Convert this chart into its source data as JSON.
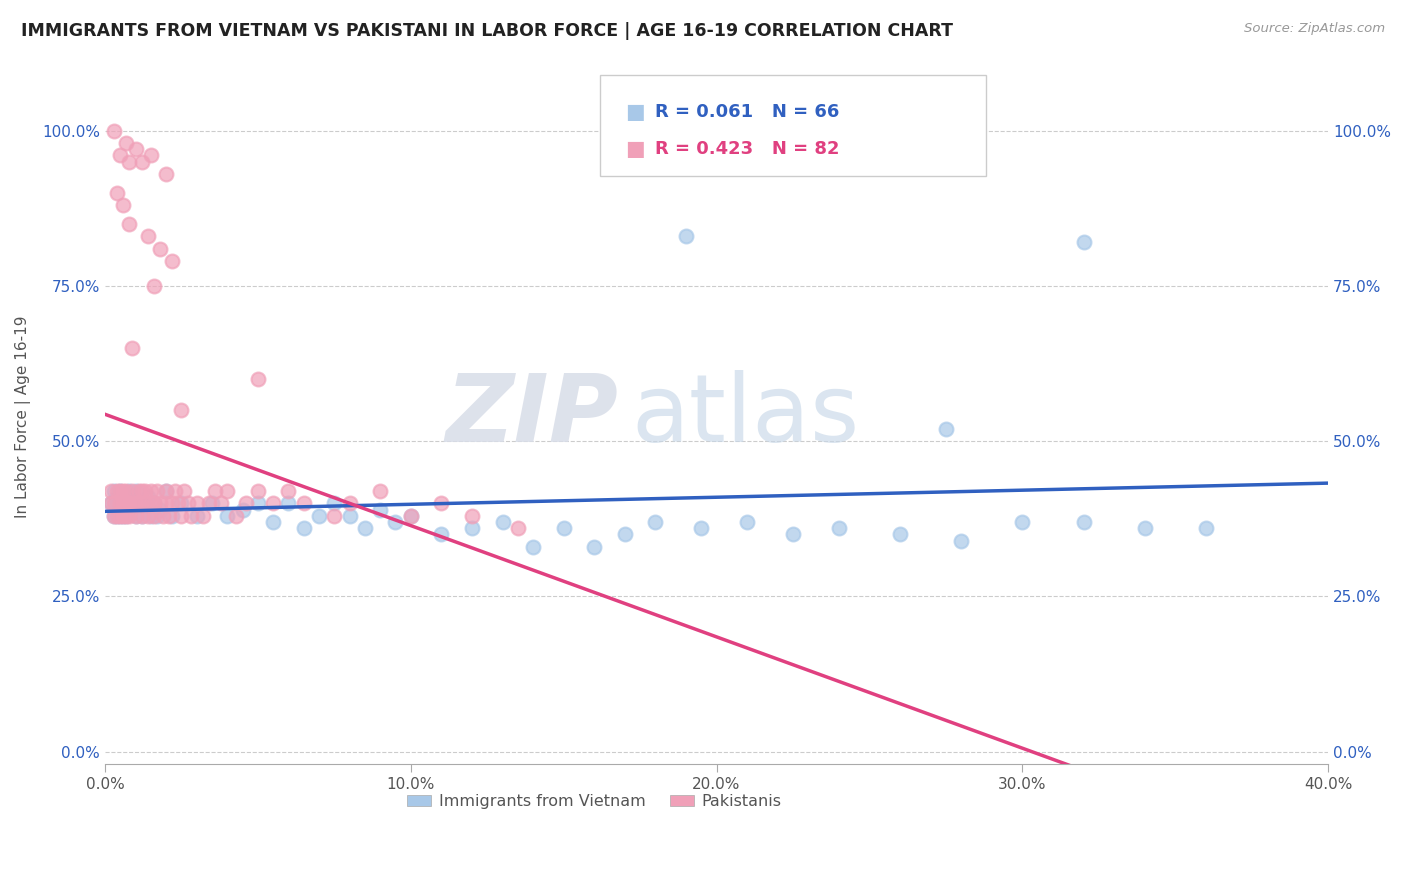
{
  "title": "IMMIGRANTS FROM VIETNAM VS PAKISTANI IN LABOR FORCE | AGE 16-19 CORRELATION CHART",
  "source": "Source: ZipAtlas.com",
  "ylabel": "In Labor Force | Age 16-19",
  "xlim": [
    0.0,
    0.4
  ],
  "ylim": [
    -0.02,
    1.1
  ],
  "yticks": [
    0.0,
    0.25,
    0.5,
    0.75,
    1.0
  ],
  "ytick_labels": [
    "0.0%",
    "25.0%",
    "50.0%",
    "75.0%",
    "100.0%"
  ],
  "xticks": [
    0.0,
    0.1,
    0.2,
    0.3,
    0.4
  ],
  "xtick_labels": [
    "0.0%",
    "10.0%",
    "20.0%",
    "30.0%",
    "40.0%"
  ],
  "watermark_zip": "ZIP",
  "watermark_atlas": "atlas",
  "blue_color": "#a8c8e8",
  "pink_color": "#f0a0b8",
  "blue_line_color": "#3060c0",
  "pink_line_color": "#e04080",
  "R_blue": 0.061,
  "N_blue": 66,
  "R_pink": 0.423,
  "N_pink": 82,
  "legend_label_blue": "Immigrants from Vietnam",
  "legend_label_pink": "Pakistanis",
  "vietnam_x": [
    0.002,
    0.003,
    0.003,
    0.004,
    0.004,
    0.004,
    0.005,
    0.005,
    0.005,
    0.006,
    0.006,
    0.006,
    0.007,
    0.007,
    0.008,
    0.008,
    0.009,
    0.01,
    0.01,
    0.011,
    0.012,
    0.013,
    0.014,
    0.015,
    0.016,
    0.017,
    0.018,
    0.02,
    0.022,
    0.025,
    0.03,
    0.035,
    0.04,
    0.045,
    0.05,
    0.055,
    0.06,
    0.065,
    0.07,
    0.075,
    0.08,
    0.085,
    0.09,
    0.095,
    0.1,
    0.11,
    0.12,
    0.13,
    0.14,
    0.15,
    0.16,
    0.17,
    0.18,
    0.195,
    0.21,
    0.225,
    0.24,
    0.26,
    0.28,
    0.3,
    0.32,
    0.34,
    0.36,
    0.275,
    0.19,
    0.32
  ],
  "vietnam_y": [
    0.4,
    0.38,
    0.42,
    0.38,
    0.4,
    0.41,
    0.38,
    0.42,
    0.39,
    0.4,
    0.38,
    0.41,
    0.4,
    0.38,
    0.39,
    0.42,
    0.4,
    0.38,
    0.42,
    0.4,
    0.38,
    0.4,
    0.41,
    0.38,
    0.4,
    0.38,
    0.39,
    0.42,
    0.38,
    0.4,
    0.38,
    0.4,
    0.38,
    0.39,
    0.4,
    0.37,
    0.4,
    0.36,
    0.38,
    0.4,
    0.38,
    0.36,
    0.39,
    0.37,
    0.38,
    0.35,
    0.36,
    0.37,
    0.33,
    0.36,
    0.33,
    0.35,
    0.37,
    0.36,
    0.37,
    0.35,
    0.36,
    0.35,
    0.34,
    0.37,
    0.37,
    0.36,
    0.36,
    0.52,
    0.83,
    0.82
  ],
  "pakistan_x": [
    0.002,
    0.002,
    0.003,
    0.003,
    0.004,
    0.004,
    0.005,
    0.005,
    0.005,
    0.006,
    0.006,
    0.006,
    0.007,
    0.007,
    0.007,
    0.008,
    0.008,
    0.009,
    0.009,
    0.01,
    0.01,
    0.011,
    0.011,
    0.012,
    0.012,
    0.013,
    0.013,
    0.014,
    0.015,
    0.015,
    0.016,
    0.016,
    0.017,
    0.018,
    0.019,
    0.02,
    0.02,
    0.021,
    0.022,
    0.023,
    0.024,
    0.025,
    0.026,
    0.027,
    0.028,
    0.03,
    0.032,
    0.034,
    0.036,
    0.038,
    0.04,
    0.043,
    0.046,
    0.05,
    0.055,
    0.06,
    0.065,
    0.075,
    0.08,
    0.09,
    0.1,
    0.11,
    0.12,
    0.135,
    0.025,
    0.05,
    0.003,
    0.007,
    0.01,
    0.005,
    0.015,
    0.008,
    0.012,
    0.02,
    0.004,
    0.006,
    0.008,
    0.014,
    0.018,
    0.022,
    0.016,
    0.009
  ],
  "pakistan_y": [
    0.4,
    0.42,
    0.38,
    0.4,
    0.42,
    0.38,
    0.4,
    0.42,
    0.38,
    0.4,
    0.38,
    0.42,
    0.4,
    0.38,
    0.42,
    0.4,
    0.38,
    0.42,
    0.4,
    0.4,
    0.38,
    0.42,
    0.4,
    0.38,
    0.42,
    0.4,
    0.42,
    0.38,
    0.4,
    0.42,
    0.38,
    0.4,
    0.42,
    0.4,
    0.38,
    0.42,
    0.4,
    0.38,
    0.4,
    0.42,
    0.4,
    0.38,
    0.42,
    0.4,
    0.38,
    0.4,
    0.38,
    0.4,
    0.42,
    0.4,
    0.42,
    0.38,
    0.4,
    0.42,
    0.4,
    0.42,
    0.4,
    0.38,
    0.4,
    0.42,
    0.38,
    0.4,
    0.38,
    0.36,
    0.55,
    0.6,
    1.0,
    0.98,
    0.97,
    0.96,
    0.96,
    0.95,
    0.95,
    0.93,
    0.9,
    0.88,
    0.85,
    0.83,
    0.81,
    0.79,
    0.75,
    0.65
  ]
}
